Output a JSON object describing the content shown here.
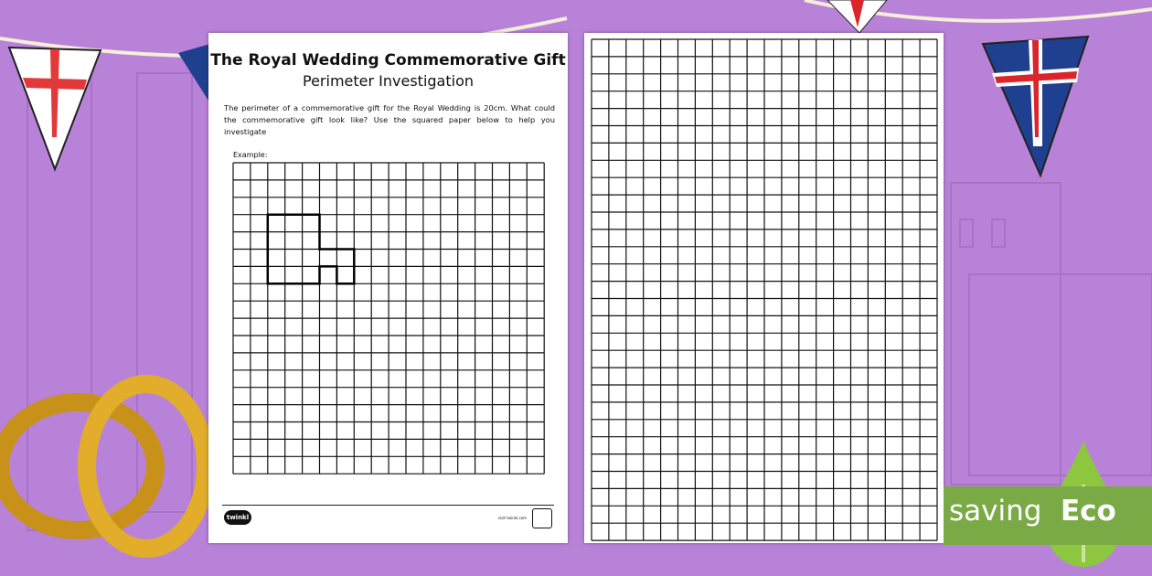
{
  "worksheet": {
    "title": "The Royal Wedding Commemorative Gift",
    "subtitle": "Perimeter Investigation",
    "instructions": "The perimeter of a commemorative gift for the Royal Wedding is 20cm. What could the commemorative gift look like? Use the squared paper below to help you investigate",
    "example_label": "Example:",
    "example_grid": {
      "columns": 18,
      "rows": 18
    },
    "footer_logo": "twinkl",
    "footer_url": "visit twinkl.com"
  },
  "blank_page": {
    "grid": {
      "columns": 20,
      "rows": 29
    }
  },
  "eco_banner": {
    "saving": "saving",
    "eco": "Eco"
  },
  "colors": {
    "background": "#b982d9",
    "eco_green": "#7aaa45",
    "leaf_green": "#8dc63f"
  }
}
